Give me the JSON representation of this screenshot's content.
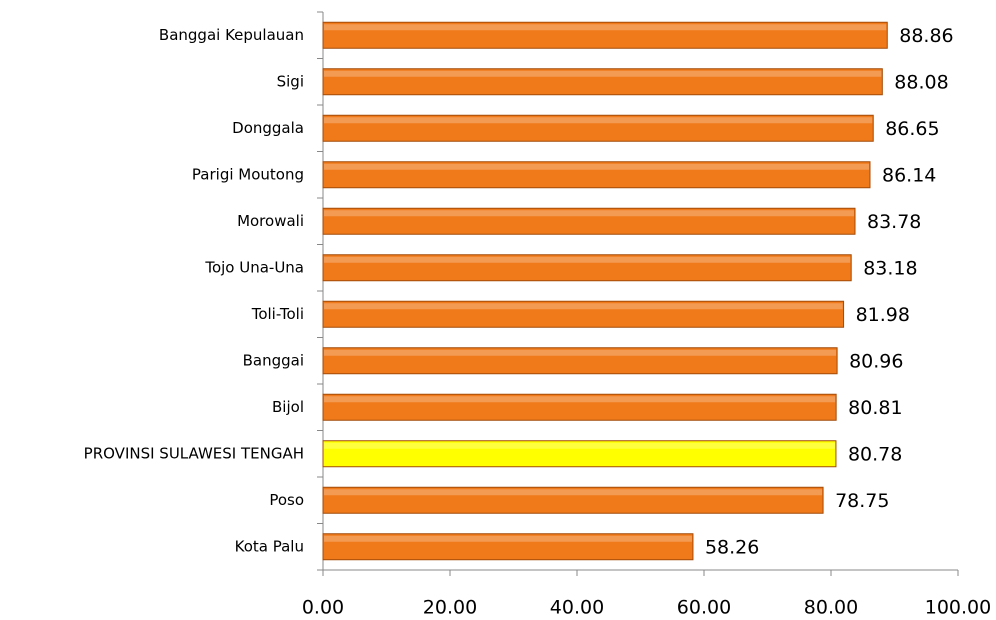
{
  "chart_data": {
    "type": "barh",
    "categories": [
      "Banggai Kepulauan",
      "Sigi",
      "Donggala",
      "Parigi Moutong",
      "Morowali",
      "Tojo Una-Una",
      "Toli-Toli",
      "Banggai",
      "Bijol",
      "PROVINSI SULAWESI TENGAH",
      "Poso",
      "Kota Palu"
    ],
    "values": [
      88.86,
      88.08,
      86.65,
      86.14,
      83.78,
      83.18,
      81.98,
      80.96,
      80.81,
      80.78,
      78.75,
      58.26
    ],
    "colors": [
      "#f07a1a",
      "#f07a1a",
      "#f07a1a",
      "#f07a1a",
      "#f07a1a",
      "#f07a1a",
      "#f07a1a",
      "#f07a1a",
      "#f07a1a",
      "#ffff00",
      "#f07a1a",
      "#f07a1a"
    ],
    "xlim": [
      0,
      100
    ],
    "xticks": [
      {
        "value": 0,
        "label": "0.00"
      },
      {
        "value": 20,
        "label": "20.00"
      },
      {
        "value": 40,
        "label": "40.00"
      },
      {
        "value": 60,
        "label": "60.00"
      },
      {
        "value": 80,
        "label": "80.00"
      },
      {
        "value": 100,
        "label": "100.00"
      }
    ]
  }
}
